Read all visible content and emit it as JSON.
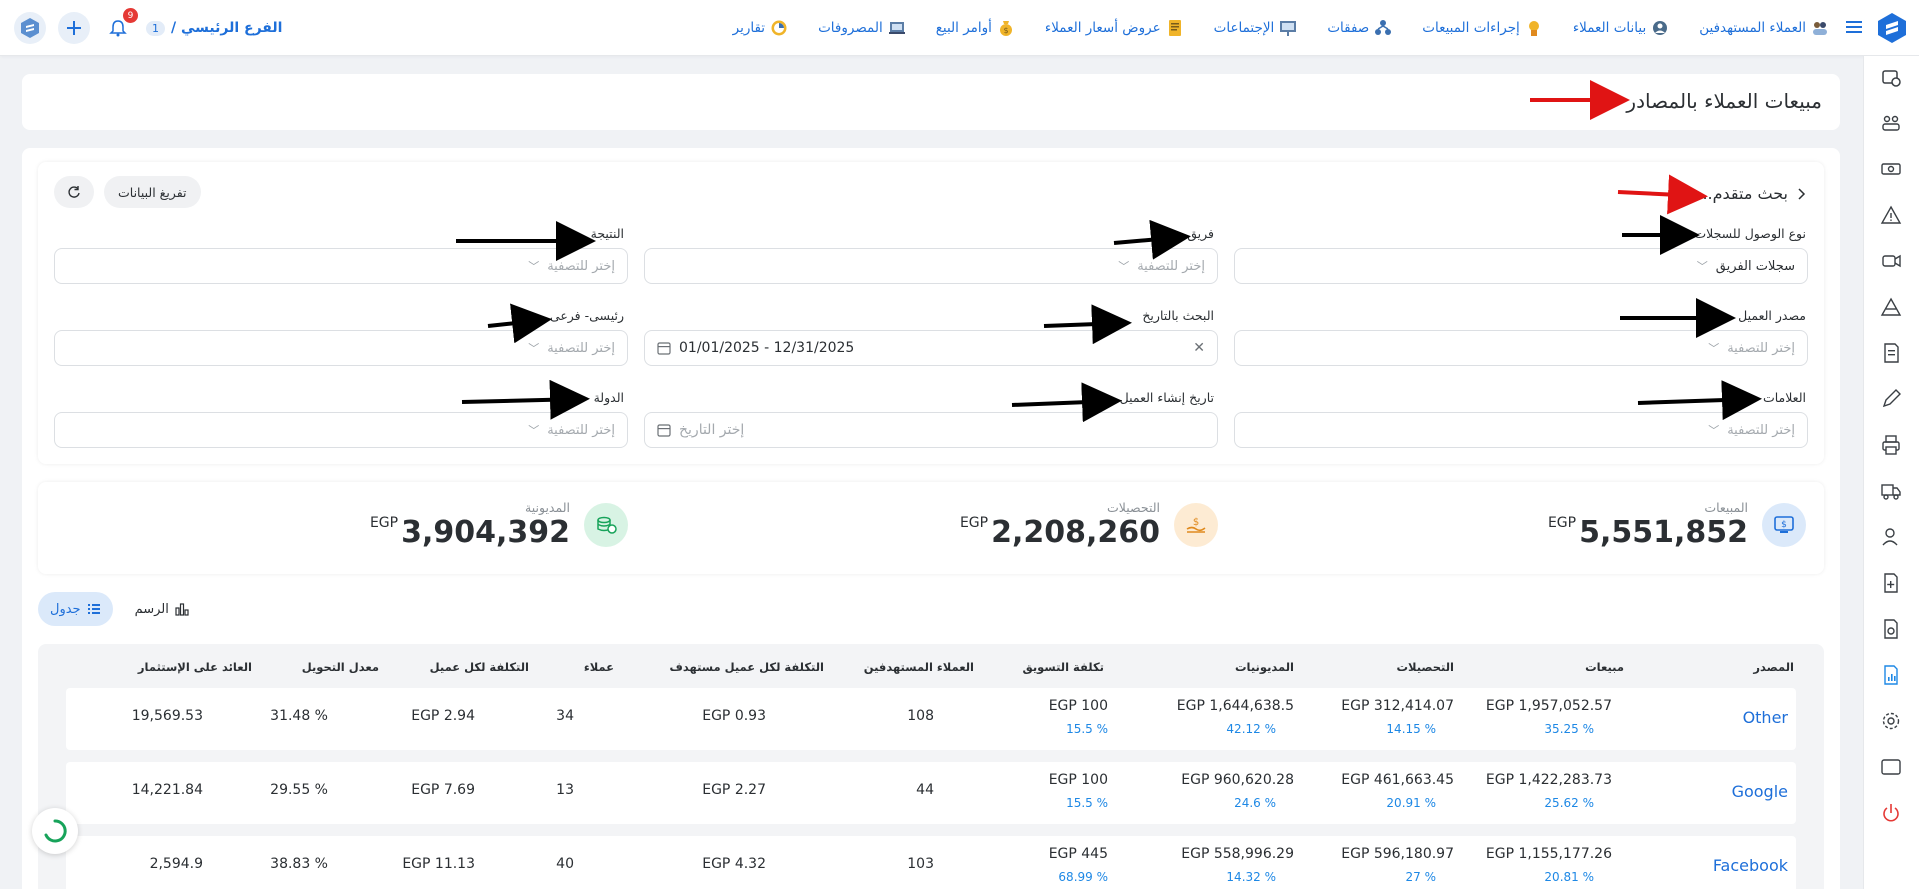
{
  "header": {
    "nav_items": [
      {
        "label": "العملاء المستهدفين",
        "icon": "target-customers-icon"
      },
      {
        "label": "بيانات العملاء",
        "icon": "customer-data-icon"
      },
      {
        "label": "إجراءات المبيعات",
        "icon": "sales-actions-icon"
      },
      {
        "label": "صفقات",
        "icon": "deals-icon"
      },
      {
        "label": "الإجتماعات",
        "icon": "meetings-icon"
      },
      {
        "label": "عروض أسعار العملاء",
        "icon": "quotations-icon"
      },
      {
        "label": "أوامر البيع",
        "icon": "sales-orders-icon"
      },
      {
        "label": "المصروفات",
        "icon": "expenses-icon"
      },
      {
        "label": "تقارير",
        "icon": "reports-icon"
      }
    ],
    "branch_label": "الفرع الرئيسي /",
    "branch_number": "1",
    "notification_count": "9",
    "accent": "#1e6fd9"
  },
  "page": {
    "title": "مبيعات العملاء بالمصادر"
  },
  "filters": {
    "advanced_search_title": "بحث متقدم...",
    "clear_button": "تفريغ البيانات",
    "fields": {
      "access_type": {
        "label": "نوع الوصول للسجلات",
        "value": "سجلات الفريق"
      },
      "team": {
        "label": "فريق",
        "placeholder": "إختر للتصفية"
      },
      "result": {
        "label": "النتيجة",
        "placeholder": "إختر للتصفية"
      },
      "customer_source": {
        "label": "مصدر العميل",
        "placeholder": "إختر للتصفية"
      },
      "date_search": {
        "label": "البحث بالتاريخ",
        "value": "01/01/2025 - 12/31/2025"
      },
      "main_sub": {
        "label": "رئيسى- فرعى",
        "placeholder": "إختر للتصفية"
      },
      "tags": {
        "label": "العلامات",
        "placeholder": "إختر للتصفية"
      },
      "customer_created_date": {
        "label": "تاريخ إنشاء العميل",
        "placeholder": "إختر التاريخ"
      },
      "country": {
        "label": "الدولة",
        "placeholder": "إختر للتصفية"
      }
    }
  },
  "kpis": {
    "sales": {
      "label": "المبيعات",
      "value": "5,551,852",
      "currency": "EGP"
    },
    "collections": {
      "label": "التحصيلات",
      "value": "2,208,260",
      "currency": "EGP"
    },
    "debts": {
      "label": "المديونية",
      "value": "3,904,392",
      "currency": "EGP"
    }
  },
  "view_toggle": {
    "table": "جدول",
    "chart": "الرسم"
  },
  "table": {
    "columns": [
      "المصدر",
      "مبيعات",
      "التحصيلات",
      "المديونيات",
      "تكلفة التسويق",
      "العملاء المستهدفين",
      "التكلفة لكل عميل مستهدف",
      "عملاء",
      "التكلفة لكل عميل",
      "معدل التحويل",
      "العائد على الإستثمار"
    ],
    "rows": [
      {
        "source": "Other",
        "sales": "EGP 1,957,052.57",
        "sales_pct": "35.25 %",
        "collections": "EGP 312,414.07",
        "collections_pct": "14.15 %",
        "debts": "EGP 1,644,638.5",
        "debts_pct": "42.12 %",
        "marketing": "EGP 100",
        "marketing_pct": "15.5 %",
        "targets": "108",
        "cost_per_target": "EGP 0.93",
        "customers": "34",
        "cost_per_customer": "EGP 2.94",
        "conversion": "31.48 %",
        "roi": "19,569.53"
      },
      {
        "source": "Google",
        "sales": "EGP 1,422,283.73",
        "sales_pct": "25.62 %",
        "collections": "EGP 461,663.45",
        "collections_pct": "20.91 %",
        "debts": "EGP 960,620.28",
        "debts_pct": "24.6 %",
        "marketing": "EGP 100",
        "marketing_pct": "15.5 %",
        "targets": "44",
        "cost_per_target": "EGP 2.27",
        "customers": "13",
        "cost_per_customer": "EGP 7.69",
        "conversion": "29.55 %",
        "roi": "14,221.84"
      },
      {
        "source": "Facebook",
        "sales": "EGP 1,155,177.26",
        "sales_pct": "20.81 %",
        "collections": "EGP 596,180.97",
        "collections_pct": "27 %",
        "debts": "EGP 558,996.29",
        "debts_pct": "14.32 %",
        "marketing": "EGP 445",
        "marketing_pct": "68.99 %",
        "targets": "103",
        "cost_per_target": "EGP 4.32",
        "customers": "40",
        "cost_per_customer": "EGP 11.13",
        "conversion": "38.83 %",
        "roi": "2,594.9"
      }
    ]
  }
}
